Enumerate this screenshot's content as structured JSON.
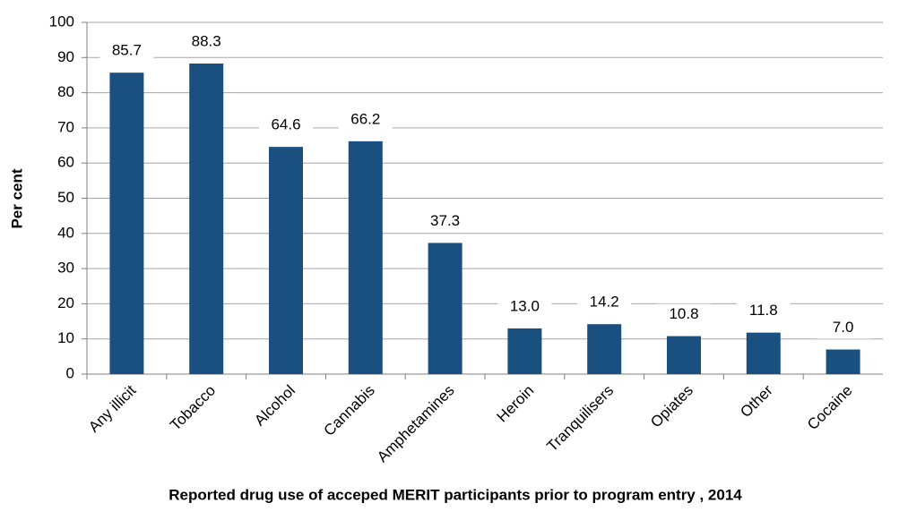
{
  "chart_data": {
    "type": "bar",
    "title": "Reported drug use of acceped MERIT  participants prior to program entry , 2014",
    "y_label": "Per cent",
    "categories": [
      "Any illicit",
      "Tobacco",
      "Alcohol",
      "Cannabis",
      "Amphetamines",
      "Heroin",
      "Tranquilisers",
      "Opiates",
      "Other",
      "Cocaine"
    ],
    "values": [
      85.7,
      88.3,
      64.6,
      66.2,
      37.3,
      13.0,
      14.2,
      10.8,
      11.8,
      7.0
    ],
    "value_labels": [
      "85.7",
      "88.3",
      "64.6",
      "66.2",
      "37.3",
      "13.0",
      "14.2",
      "10.8",
      "11.8",
      "7.0"
    ],
    "color": "#1a5080",
    "ylim": [
      0,
      100
    ],
    "yticks": [
      0,
      10,
      20,
      30,
      40,
      50,
      60,
      70,
      80,
      90,
      100
    ],
    "grid": true
  }
}
